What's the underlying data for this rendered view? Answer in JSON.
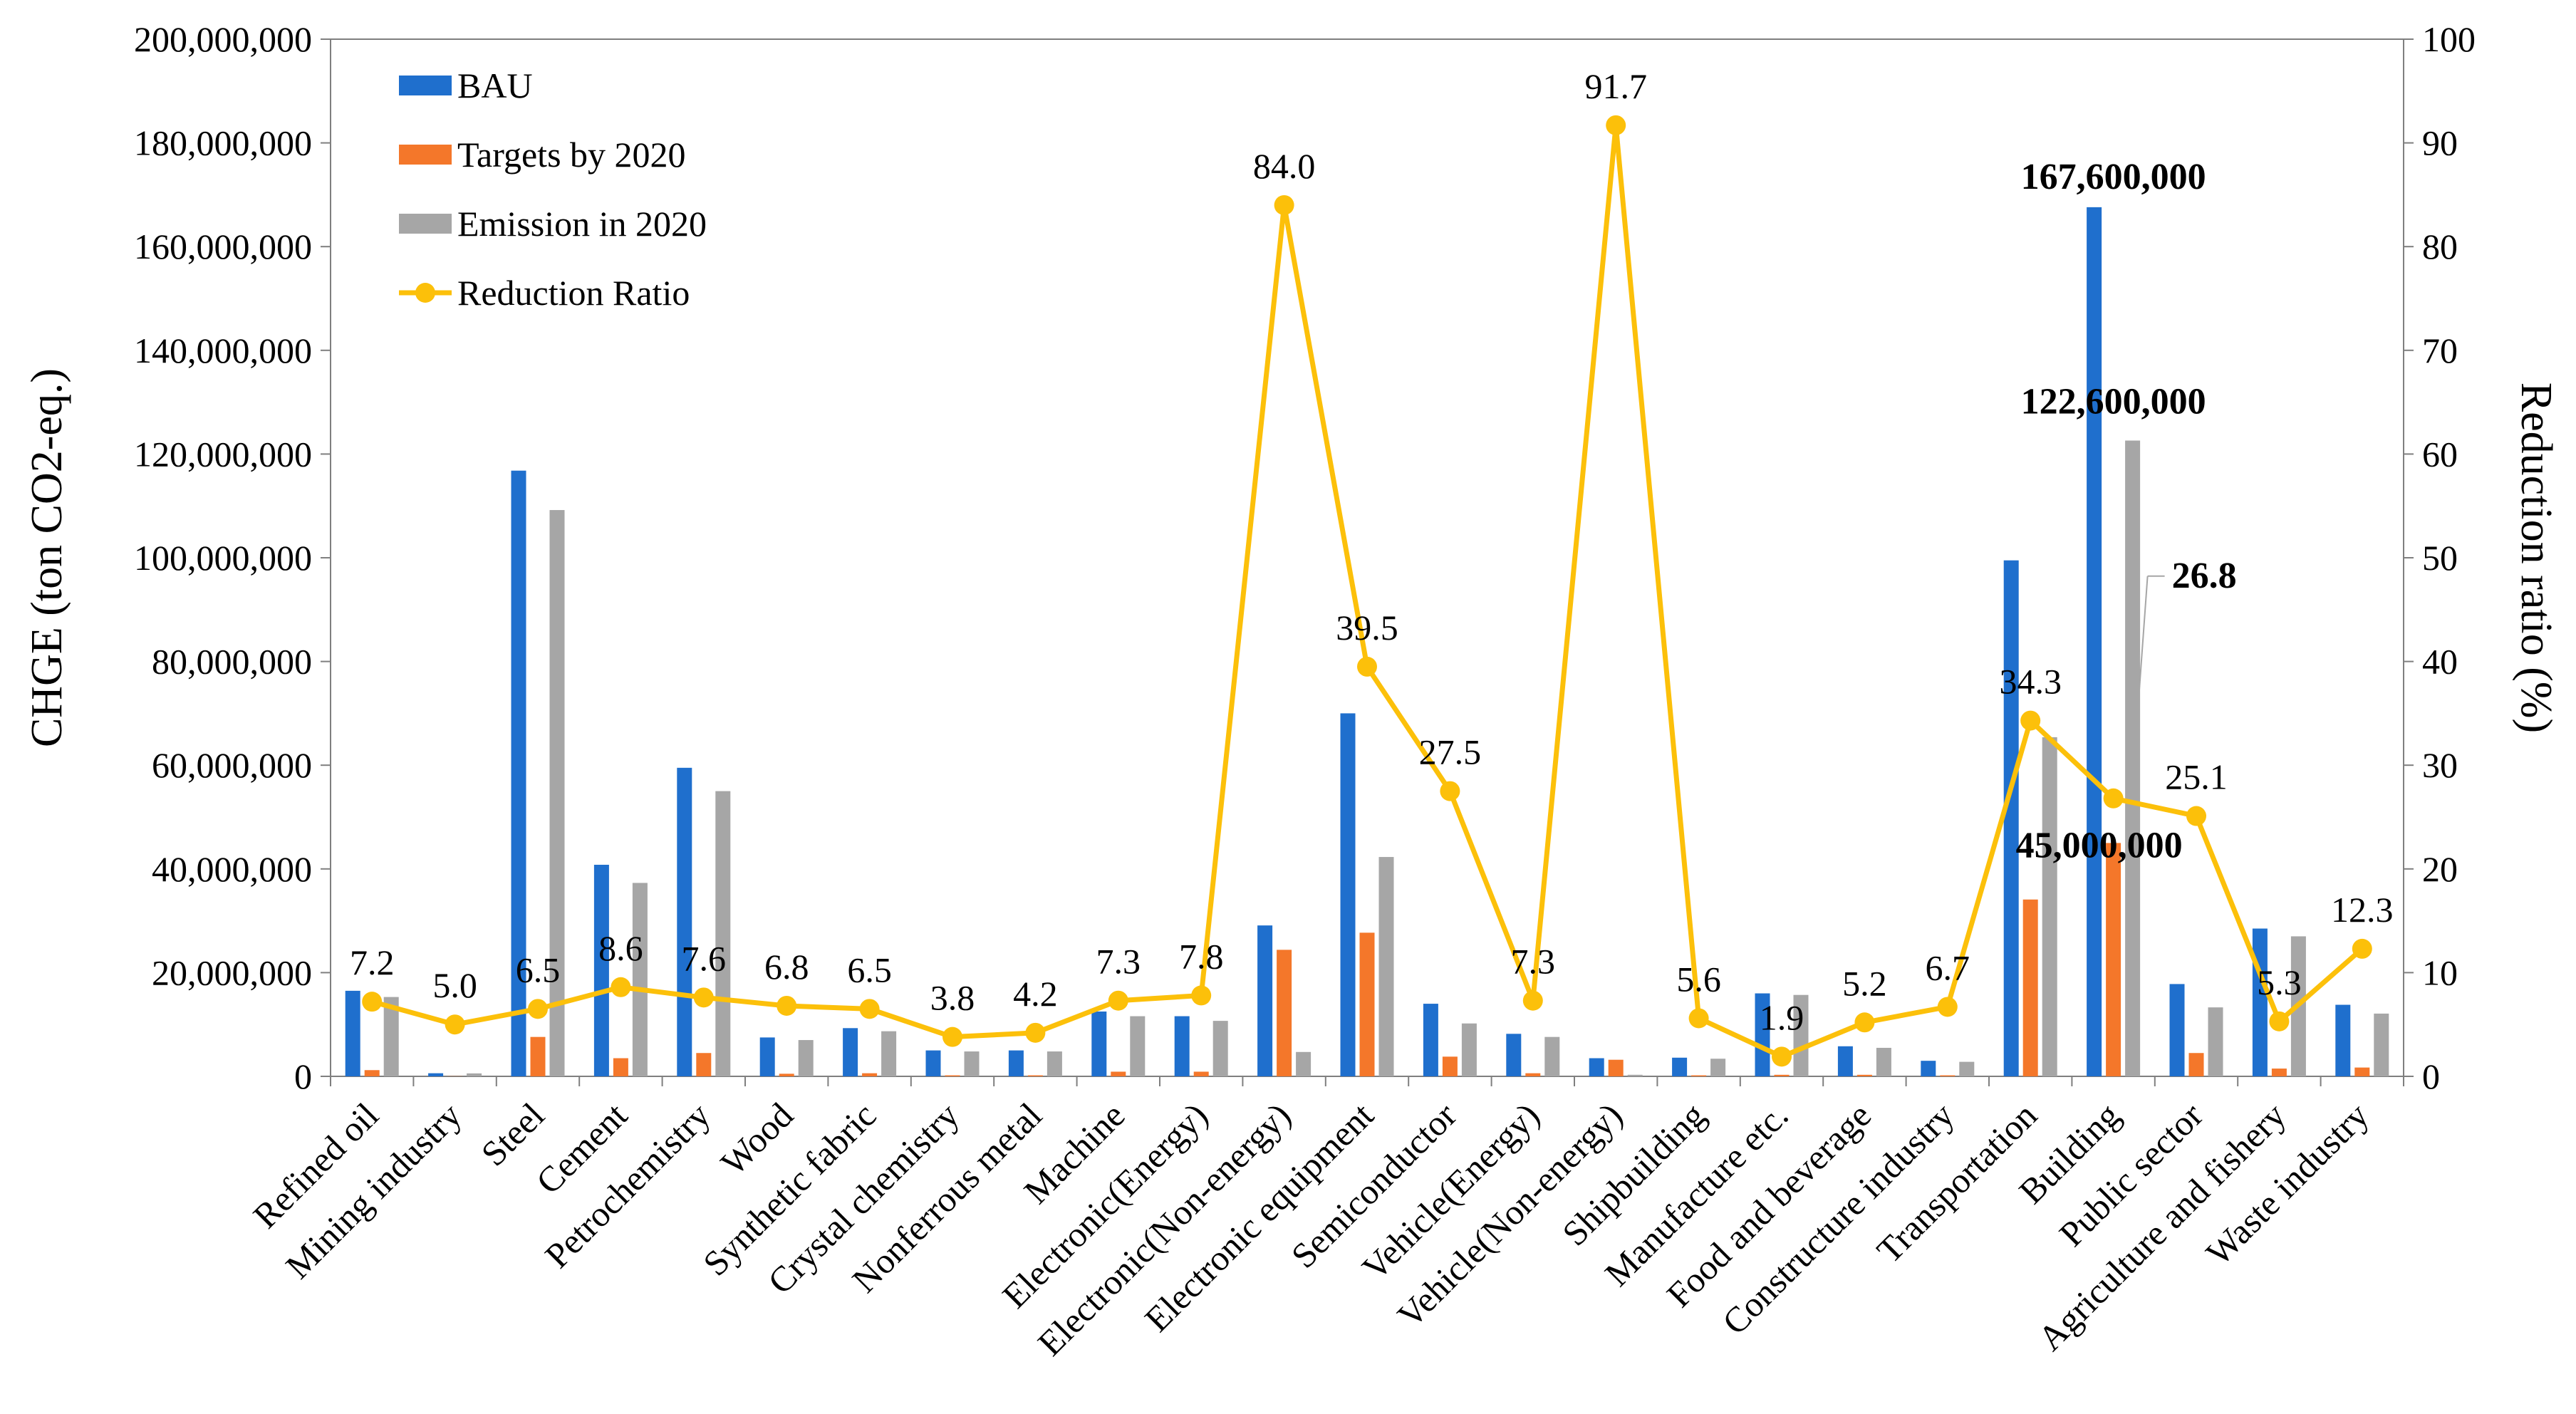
{
  "chart_data": {
    "type": "bar",
    "categories": [
      "Refined oil",
      "Mining industry",
      "Steel",
      "Cement",
      "Petrochemistry",
      "Wood",
      "Synthetic fabric",
      "Crystal chemistry",
      "Nonferrous metal",
      "Machine",
      "Electronic(Energy)",
      "Electronic(Non-energy)",
      "Electronic equipment",
      "Semiconductor",
      "Vehicle(Energy)",
      "Vehicle(Non-energy)",
      "Shipbuilding",
      "Manufacture etc.",
      "Food and beverage",
      "Constructure industry",
      "Transportation",
      "Building",
      "Public sector",
      "Agriculture and fishery",
      "Waste industry"
    ],
    "series": [
      {
        "name": "BAU",
        "type": "bar",
        "axis": "left",
        "color": "#1f6fcd",
        "values": [
          16500000,
          600000,
          116800000,
          40800000,
          59500000,
          7500000,
          9300000,
          5000000,
          5000000,
          12500000,
          11600000,
          29100000,
          70000000,
          14000000,
          8200000,
          3500000,
          3600000,
          16000000,
          5800000,
          3000000,
          99500000,
          167600000,
          17800000,
          28500000,
          13800000
        ]
      },
      {
        "name": "Targets by 2020",
        "type": "bar",
        "axis": "left",
        "color": "#f4772a",
        "values": [
          1200000,
          30000,
          7600000,
          3500000,
          4500000,
          500000,
          600000,
          200000,
          200000,
          900000,
          900000,
          24400000,
          27700000,
          3800000,
          600000,
          3200000,
          200000,
          300000,
          300000,
          200000,
          34100000,
          45000000,
          4500000,
          1500000,
          1700000
        ]
      },
      {
        "name": "Emission in 2020",
        "type": "bar",
        "axis": "left",
        "color": "#a6a6a6",
        "values": [
          15300000,
          570000,
          109200000,
          37300000,
          55000000,
          7000000,
          8700000,
          4800000,
          4800000,
          11600000,
          10700000,
          4700000,
          42300000,
          10200000,
          7600000,
          300000,
          3400000,
          15700000,
          5500000,
          2800000,
          65400000,
          122600000,
          13300000,
          27000000,
          12100000
        ]
      },
      {
        "name": "Reduction Ratio",
        "type": "line",
        "axis": "right",
        "color": "#fcc00a",
        "values": [
          7.2,
          5.0,
          6.5,
          8.6,
          7.6,
          6.8,
          6.5,
          3.8,
          4.2,
          7.3,
          7.8,
          84.0,
          39.5,
          27.5,
          7.3,
          91.7,
          5.6,
          1.9,
          5.2,
          6.7,
          34.3,
          26.8,
          25.1,
          5.3,
          12.3
        ]
      }
    ],
    "ratio_labels": [
      "7.2",
      "5.0",
      "6.5",
      "8.6",
      "7.6",
      "6.8",
      "6.5",
      "3.8",
      "4.2",
      "7.3",
      "7.8",
      "84.0",
      "39.5",
      "27.5",
      "7.3",
      "91.7",
      "5.6",
      "1.9",
      "5.2",
      "6.7",
      "34.3",
      "26.8",
      "25.1",
      "5.3",
      "12.3"
    ],
    "bold_ratio_index": 21,
    "annotations": [
      {
        "text": "167,600,000",
        "series": "BAU",
        "category_index": 21
      },
      {
        "text": "122,600,000",
        "series": "Emission in 2020",
        "category_index": 21
      },
      {
        "text": "45,000,000",
        "series": "Targets by 2020",
        "category_index": 21
      }
    ],
    "ylabel": "CHGE (ton CO2-eq.)",
    "y2label": "Reduction ratio (%)",
    "ylim": [
      0,
      200000000
    ],
    "y2lim": [
      0,
      100
    ],
    "yticks": [
      "0",
      "20,000,000",
      "40,000,000",
      "60,000,000",
      "80,000,000",
      "100,000,000",
      "120,000,000",
      "140,000,000",
      "160,000,000",
      "180,000,000",
      "200,000,000"
    ],
    "y2ticks": [
      "0",
      "10",
      "20",
      "30",
      "40",
      "50",
      "60",
      "70",
      "80",
      "90",
      "100"
    ],
    "legend": {
      "position": "top-left",
      "entries": [
        "BAU",
        "Targets by 2020",
        "Emission in 2020",
        "Reduction Ratio"
      ]
    },
    "grid": false
  }
}
